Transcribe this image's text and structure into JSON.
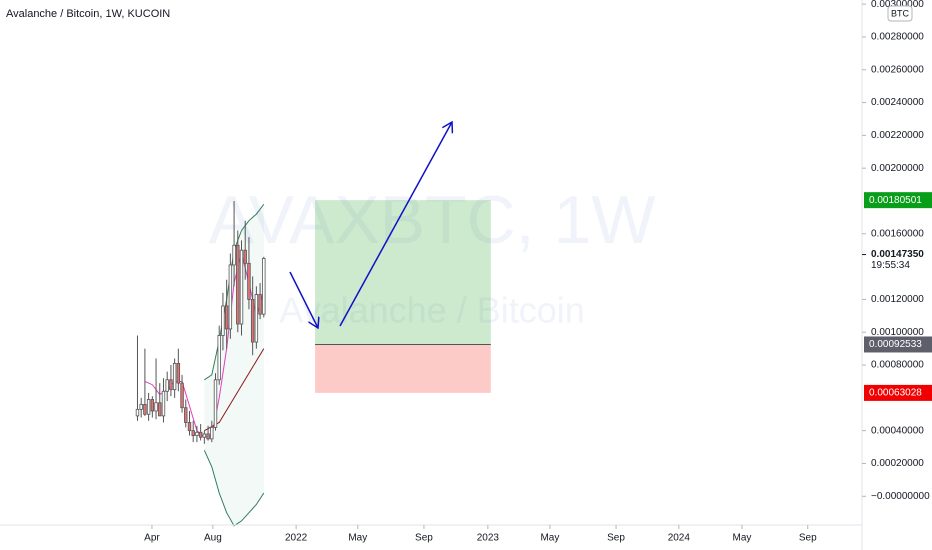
{
  "chart_data": {
    "type": "candlestick",
    "title": "Avalanche / Bitcoin, 1W, KUCOIN",
    "watermark": "AVAXBTC, 1W",
    "watermark_subtitle": "Avalanche / Bitcoin",
    "currency": "BTC",
    "up_color": "#ffffff",
    "down_color": "#e57373",
    "x": [
      37,
      38,
      39,
      40,
      41,
      42,
      43,
      44,
      45,
      46,
      47,
      48,
      49,
      50,
      51,
      52,
      53,
      54,
      55,
      56,
      57,
      58,
      59,
      60,
      61,
      62,
      63,
      64,
      65,
      66,
      67,
      68,
      69,
      70,
      71
    ],
    "open": [
      0.00049,
      0.00053,
      0.00056,
      0.0005,
      0.00059,
      0.00052,
      0.00057,
      0.00049,
      0.00064,
      0.00071,
      0.00065,
      0.00081,
      0.00069,
      0.00054,
      0.00045,
      0.0004,
      0.00037,
      0.00039,
      0.00036,
      0.00038,
      0.00035,
      0.00042,
      0.00071,
      0.00098,
      0.00116,
      0.00102,
      0.00141,
      0.00153,
      0.00105,
      0.0015,
      0.00142,
      0.0012,
      0.00094,
      0.00123,
      0.00111
    ],
    "high": [
      0.00098,
      0.0006,
      0.0009,
      0.00063,
      0.00061,
      0.00084,
      0.00069,
      0.00072,
      0.00076,
      0.0008,
      0.00084,
      0.0009,
      0.00074,
      0.00059,
      0.00052,
      0.00046,
      0.00043,
      0.00044,
      0.0004,
      0.00043,
      0.00046,
      0.00075,
      0.00104,
      0.00124,
      0.00132,
      0.00148,
      0.0018,
      0.00162,
      0.00156,
      0.00168,
      0.00158,
      0.00134,
      0.00128,
      0.0013,
      0.00146
    ],
    "low": [
      0.00046,
      0.00048,
      0.00049,
      0.00046,
      0.00048,
      0.00047,
      0.00051,
      0.00045,
      0.00058,
      0.00061,
      0.0006,
      0.00064,
      0.00051,
      0.00042,
      0.00037,
      0.00033,
      0.00033,
      0.00034,
      0.00032,
      0.00034,
      0.00033,
      0.0004,
      0.00068,
      0.00089,
      0.0009,
      0.00096,
      0.00128,
      0.001,
      0.00098,
      0.00132,
      0.00114,
      0.00086,
      0.0009,
      0.00108,
      0.00109
    ],
    "close": [
      0.00053,
      0.00056,
      0.0005,
      0.00059,
      0.00052,
      0.00057,
      0.00049,
      0.00064,
      0.00071,
      0.00065,
      0.00081,
      0.00069,
      0.00054,
      0.00045,
      0.0004,
      0.00037,
      0.00039,
      0.00036,
      0.00038,
      0.00035,
      0.00042,
      0.00071,
      0.00098,
      0.00116,
      0.00102,
      0.00141,
      0.00153,
      0.00105,
      0.0015,
      0.00142,
      0.0012,
      0.00094,
      0.00123,
      0.00111,
      0.00145
    ],
    "overlays": [
      {
        "color": "#2e7d5b",
        "x": [
          55,
          57,
          59,
          61,
          63,
          65,
          67,
          69,
          71
        ],
        "values": [
          0.00071,
          0.00074,
          0.00095,
          0.0012,
          0.0015,
          0.00162,
          0.00168,
          0.00172,
          0.00178
        ]
      },
      {
        "color": "#2e7d5b",
        "x": [
          55,
          57,
          59,
          61,
          63,
          65,
          67,
          69,
          71
        ],
        "values": [
          0.00028,
          0.00018,
          2e-05,
          -0.0001,
          -0.00018,
          -0.00015,
          -0.0001,
          -5e-05,
          2e-05
        ]
      },
      {
        "color": "#e040c0",
        "x": [
          39,
          41,
          43,
          45,
          47,
          49,
          51,
          53,
          55,
          57,
          59,
          61,
          63,
          65,
          67,
          69,
          71
        ],
        "values": [
          0.0007,
          0.00068,
          0.00062,
          0.00065,
          0.0007,
          0.0007,
          0.00055,
          0.0004,
          0.00036,
          0.00037,
          0.0006,
          0.0009,
          0.0013,
          0.00148,
          0.0013,
          0.0011,
          0.00125
        ]
      },
      {
        "color": "#8b1a1a",
        "x": [
          55,
          59,
          63,
          67,
          71
        ],
        "values": [
          0.0004,
          0.00045,
          0.0006,
          0.00075,
          0.0009
        ]
      }
    ],
    "position": {
      "x": [
        84.8,
        132.1
      ],
      "target": 0.00180501,
      "entry": 0.00092533,
      "stop": 0.00063028
    },
    "current_price": {
      "value": 0.0014735,
      "label": "0.00147350"
    },
    "countdown": "19:55:34",
    "xlim": [
      0,
      232
    ],
    "xticks": [
      {
        "value": 40.9,
        "label": "Apr"
      },
      {
        "value": 57.3,
        "label": "Aug"
      },
      {
        "value": 79.7,
        "label": "2022"
      },
      {
        "value": 96.3,
        "label": "May"
      },
      {
        "value": 114.1,
        "label": "Sep"
      },
      {
        "value": 131.3,
        "label": "2023"
      },
      {
        "value": 148,
        "label": "May"
      },
      {
        "value": 165.8,
        "label": "Sep"
      },
      {
        "value": 182.7,
        "label": "2024"
      },
      {
        "value": 199.7,
        "label": "May"
      },
      {
        "value": 217.4,
        "label": "Sep"
      }
    ],
    "ylim": [
      -0.000175,
      0.003025
    ],
    "yticks": [
      {
        "value": 0.003,
        "label": "0.00300000"
      },
      {
        "value": 0.0028,
        "label": "0.00280000"
      },
      {
        "value": 0.0026,
        "label": "0.00260000"
      },
      {
        "value": 0.0024,
        "label": "0.00240000"
      },
      {
        "value": 0.0022,
        "label": "0.00220000"
      },
      {
        "value": 0.002,
        "label": "0.00200000"
      },
      {
        "value": 0.0016,
        "label": "0.00160000"
      },
      {
        "value": 0.0012,
        "label": "0.00120000"
      },
      {
        "value": 0.001,
        "label": "0.00100000"
      },
      {
        "value": 0.0008,
        "label": "0.00080000"
      },
      {
        "value": 0.0004,
        "label": "0.00040000"
      },
      {
        "value": 0.0002,
        "label": "0.00020000"
      },
      {
        "value": 0,
        "label": "−0.00000000"
      }
    ]
  }
}
